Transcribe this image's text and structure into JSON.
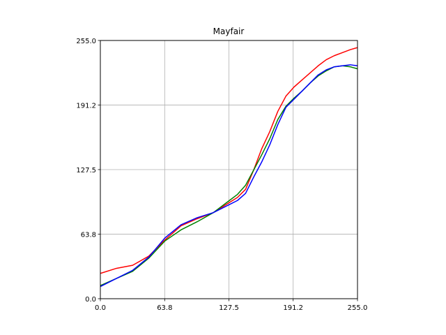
{
  "chart_data": {
    "type": "line",
    "title": "Mayfair",
    "xlabel": "",
    "ylabel": "",
    "xlim": [
      0,
      255
    ],
    "ylim": [
      0,
      255
    ],
    "grid": true,
    "xticks": [
      0.0,
      63.8,
      127.5,
      191.2,
      255.0
    ],
    "xtick_labels": [
      "0.0",
      "63.8",
      "127.5",
      "191.2",
      "255.0"
    ],
    "yticks": [
      0.0,
      63.8,
      127.5,
      191.2,
      255.0
    ],
    "ytick_labels": [
      "0.0",
      "63.8",
      "127.5",
      "191.2",
      "255.0"
    ],
    "x": [
      0,
      16,
      32,
      48,
      64,
      80,
      96,
      112,
      128,
      136,
      144,
      152,
      160,
      168,
      176,
      184,
      192,
      200,
      208,
      216,
      224,
      232,
      240,
      248,
      255
    ],
    "series": [
      {
        "color": "#ff0000",
        "values": [
          25,
          30,
          33,
          42,
          58,
          72,
          79,
          85,
          95,
          100,
          108,
          127,
          148,
          165,
          185,
          200,
          209,
          216,
          223,
          230,
          236,
          240,
          243,
          246,
          248
        ]
      },
      {
        "color": "#008000",
        "values": [
          13,
          20,
          27,
          40,
          57,
          68,
          76,
          85,
          97,
          103,
          112,
          127,
          142,
          158,
          177,
          190,
          198,
          205,
          213,
          220,
          225,
          229,
          230,
          229,
          227
        ]
      },
      {
        "color": "#0000ff",
        "values": [
          12,
          20,
          28,
          41,
          60,
          73,
          80,
          85,
          93,
          97,
          104,
          120,
          135,
          152,
          172,
          189,
          197,
          205,
          213,
          221,
          226,
          229,
          230,
          231,
          230
        ]
      }
    ]
  }
}
